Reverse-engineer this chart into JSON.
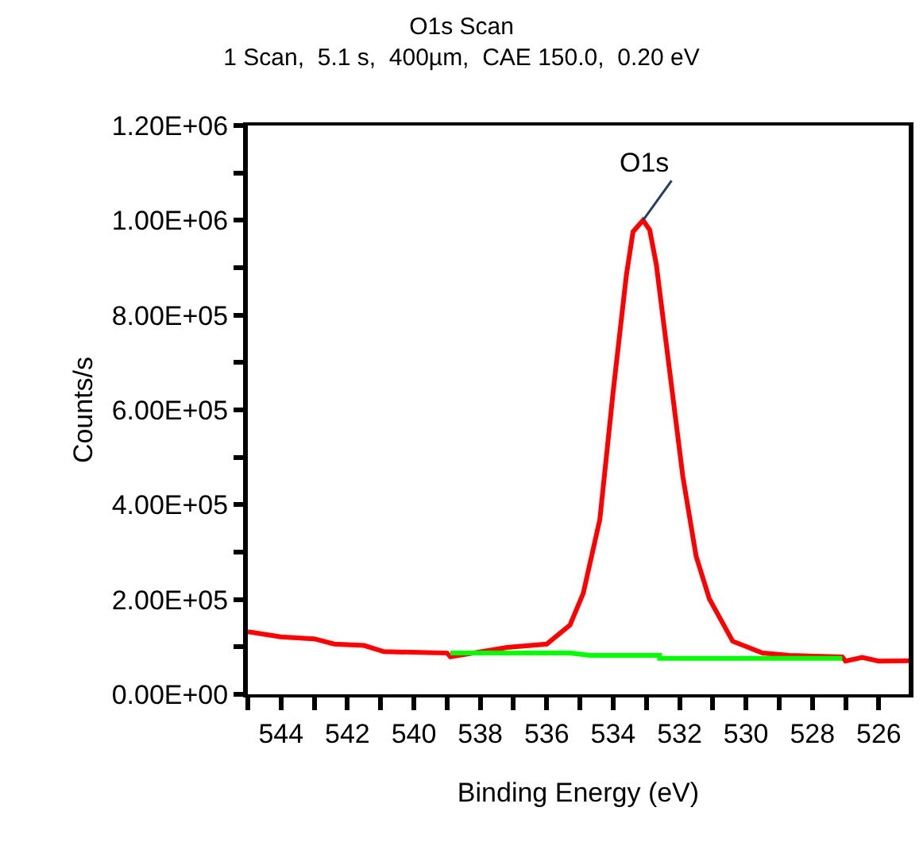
{
  "chart_data": {
    "type": "line",
    "title": "O1s Scan",
    "subtitle": "1 Scan,  5.1 s,  400µm,  CAE 150.0,  0.20 eV",
    "xlabel": "Binding Energy (eV)",
    "ylabel": "Counts/s",
    "xlim": [
      545,
      525.1
    ],
    "xticks": [
      {
        "value": 545,
        "label": null
      },
      544,
      {
        "value": 543,
        "label": null
      },
      542,
      {
        "value": 541,
        "label": null
      },
      540,
      {
        "value": 539,
        "label": null
      },
      538,
      {
        "value": 537,
        "label": null
      },
      536,
      {
        "value": 535,
        "label": null
      },
      534,
      {
        "value": 533,
        "label": null
      },
      532,
      {
        "value": 531,
        "label": null
      },
      530,
      {
        "value": 529,
        "label": null
      },
      528,
      {
        "value": 527,
        "label": null
      },
      526
    ],
    "ylim": [
      0,
      1200000
    ],
    "yticks": [
      {
        "value": 0,
        "label": "0.00E+00"
      },
      {
        "value": 100000,
        "label": null
      },
      {
        "value": 200000,
        "label": "2.00E+05"
      },
      {
        "value": 300000,
        "label": null
      },
      {
        "value": 400000,
        "label": "4.00E+05"
      },
      {
        "value": 500000,
        "label": null
      },
      {
        "value": 600000,
        "label": "6.00E+05"
      },
      {
        "value": 700000,
        "label": null
      },
      {
        "value": 800000,
        "label": "8.00E+05"
      },
      {
        "value": 900000,
        "label": null
      },
      {
        "value": 1000000,
        "label": "1.00E+06"
      },
      {
        "value": 1100000,
        "label": null
      },
      {
        "value": 1200000,
        "label": "1.20E+06"
      }
    ],
    "marker": "none",
    "line_style": "solid",
    "annotations": [
      {
        "text": "O1s",
        "x": 533.1,
        "y": 1000000
      }
    ],
    "series": [
      {
        "color": "#ff0000",
        "x": [
          545,
          544,
          543,
          542.4,
          541.5,
          540.9,
          539.0,
          538.9,
          537.2,
          536.0,
          535.3,
          534.9,
          534.4,
          534.0,
          533.6,
          533.4,
          533.1,
          532.9,
          532.7,
          532.3,
          531.9,
          531.5,
          531.1,
          530.4,
          529.5,
          528.7,
          527.1,
          527.0,
          526.5,
          526.0,
          525.1
        ],
        "values": [
          132000,
          121000,
          117000,
          106000,
          103000,
          90000,
          87000,
          79000,
          99000,
          106000,
          146000,
          213000,
          369000,
          638000,
          885000,
          976000,
          1000000,
          980000,
          907000,
          683000,
          459000,
          291000,
          201000,
          112000,
          87000,
          82000,
          79000,
          70000,
          78000,
          70000,
          71000
        ]
      },
      {
        "color": "#00ff00",
        "x": [
          538.9,
          535.3,
          534.7,
          532.6,
          532.6,
          527.1
        ],
        "values": [
          87000,
          87000,
          82000,
          82000,
          76000,
          76000
        ]
      }
    ]
  }
}
